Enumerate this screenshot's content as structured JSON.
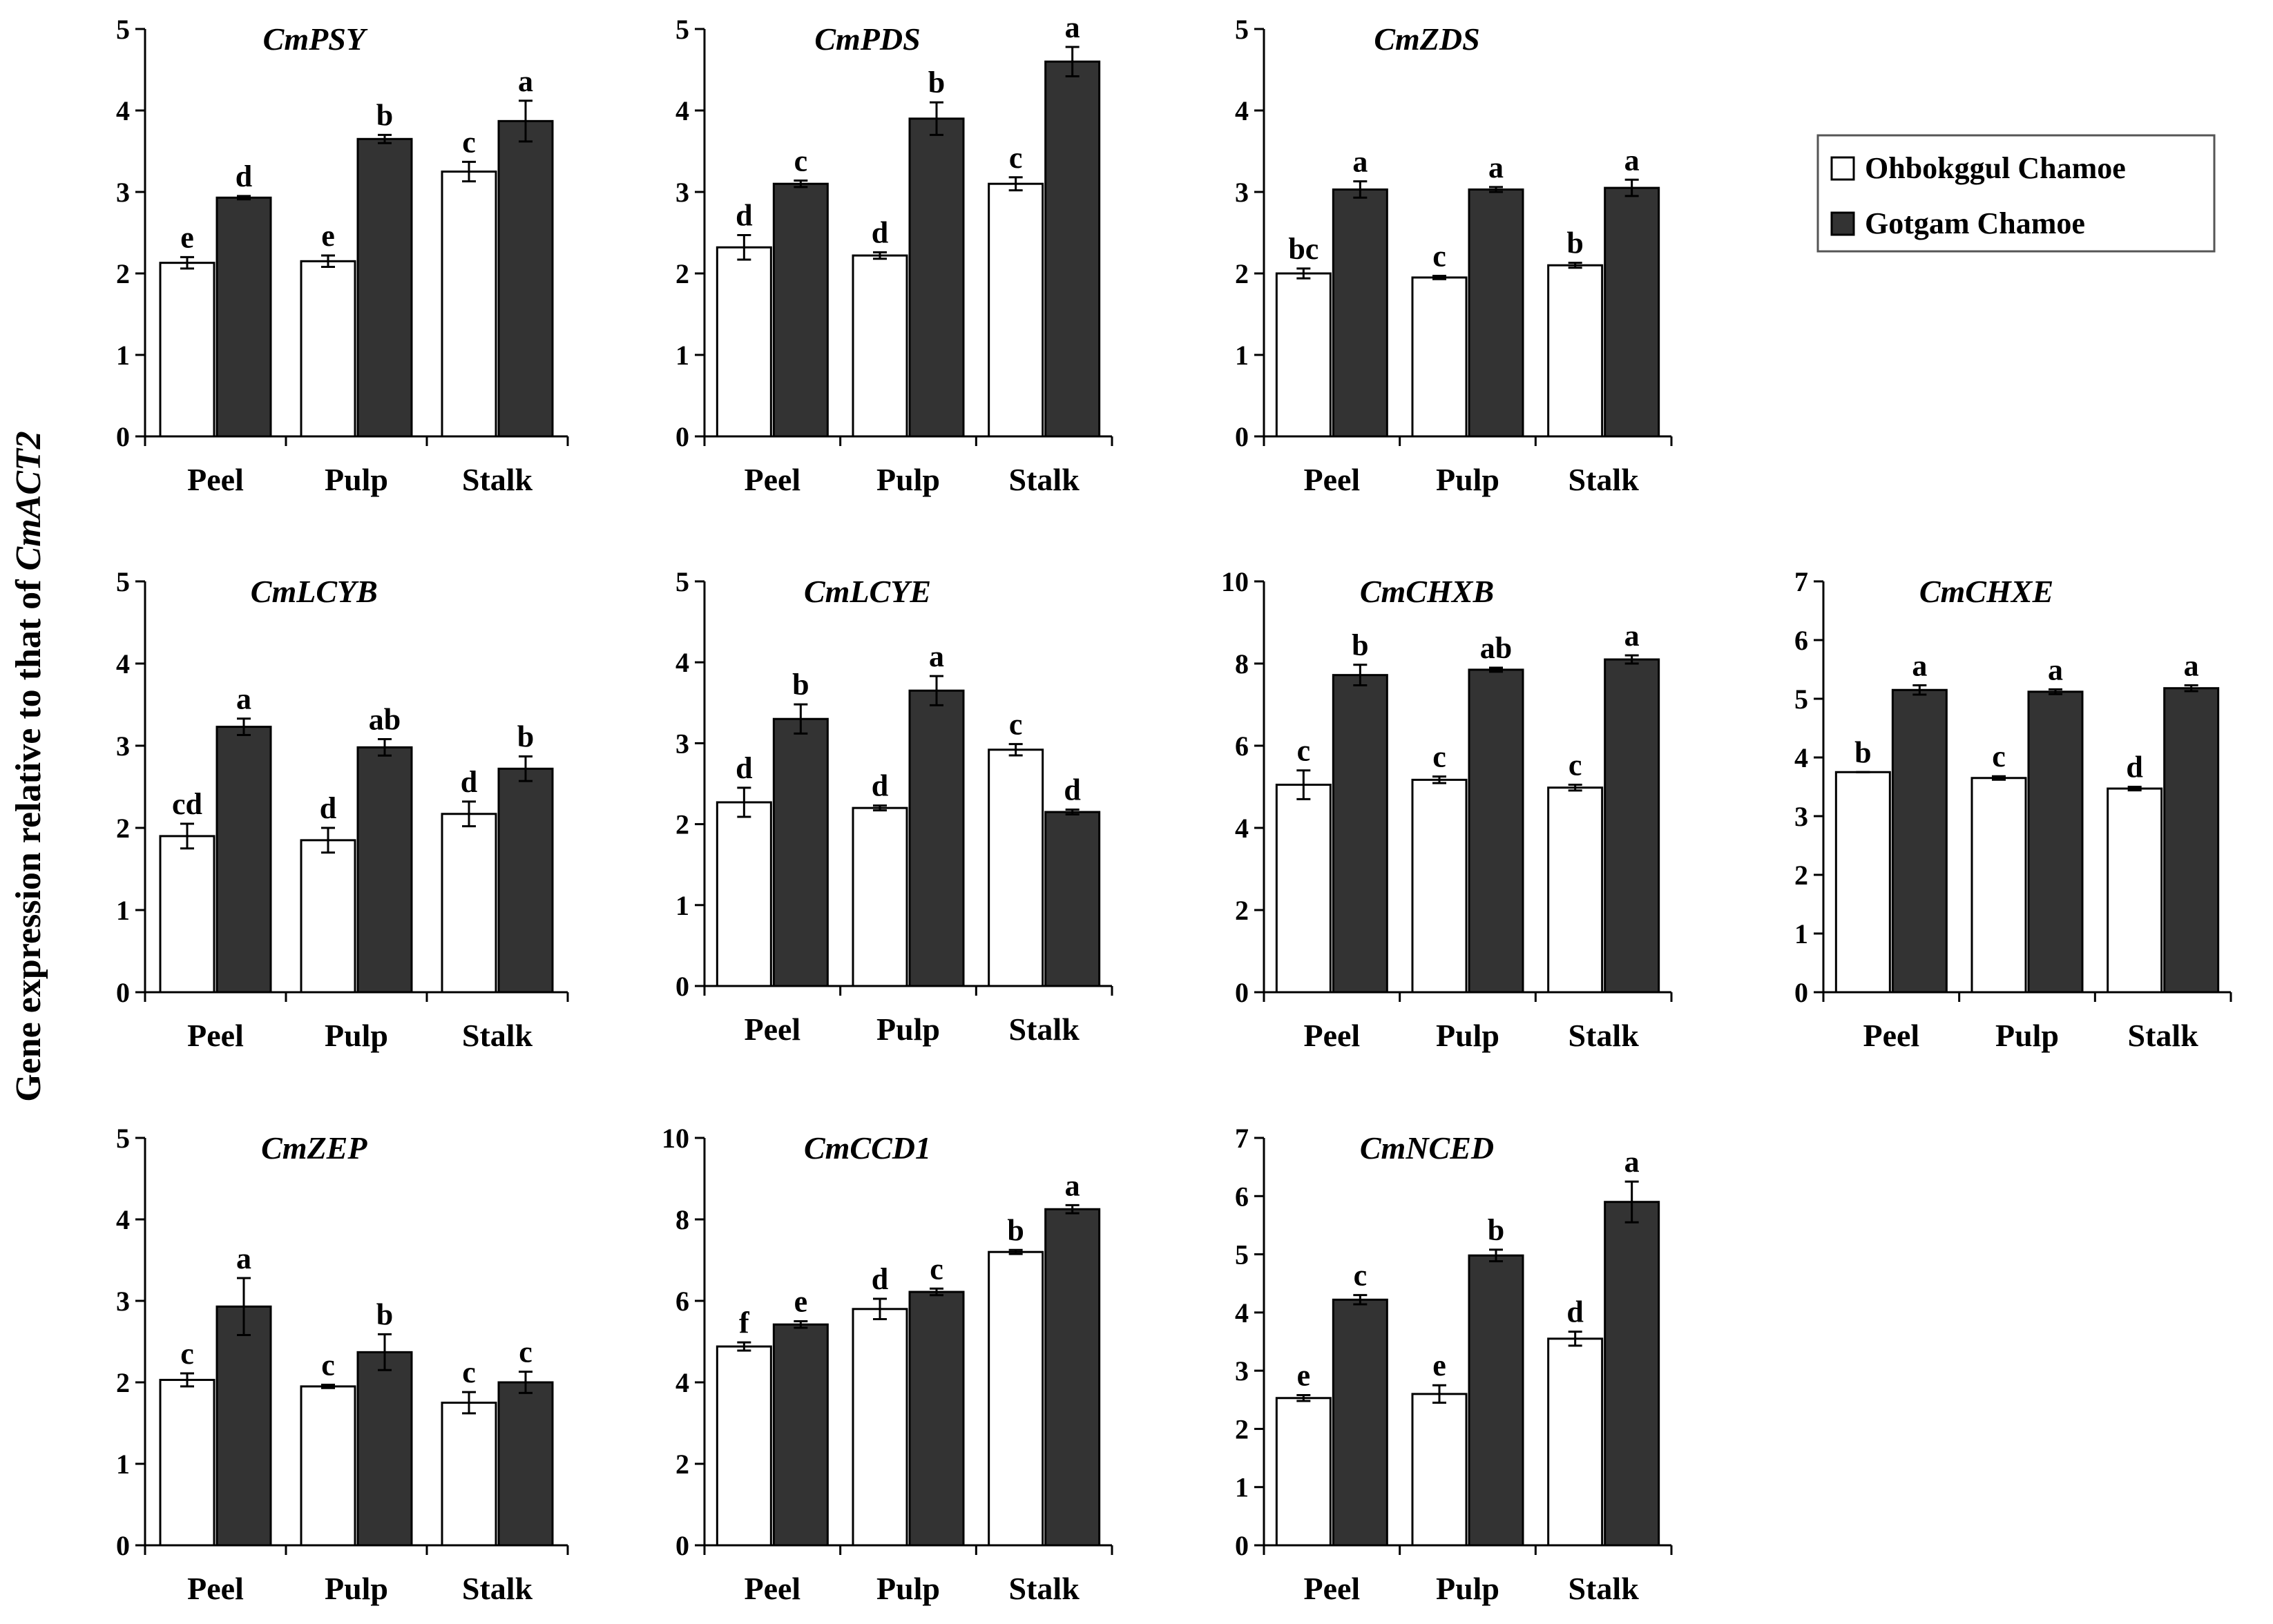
{
  "figure": {
    "ylabel_prefix": "Gene expression relative to that of ",
    "ylabel_gene": "CmACT2",
    "legend": [
      {
        "label": "Ohbokggul Chamoe",
        "color": "#ffffff"
      },
      {
        "label": "Gotgam Chamoe",
        "color": "#333333"
      }
    ]
  },
  "chart_data": [
    {
      "type": "bar",
      "title": "CmPSY",
      "categories": [
        "Peel",
        "Pulp",
        "Stalk"
      ],
      "ylim": [
        0,
        5
      ],
      "yticks": [
        0,
        1,
        2,
        3,
        4,
        5
      ],
      "series": [
        {
          "name": "Ohbokggul Chamoe",
          "values": [
            2.13,
            2.15,
            3.25
          ],
          "errors": [
            0.07,
            0.07,
            0.12
          ],
          "letters": [
            "e",
            "e",
            "c"
          ]
        },
        {
          "name": "Gotgam Chamoe",
          "values": [
            2.93,
            3.65,
            3.87
          ],
          "errors": [
            0.02,
            0.05,
            0.25
          ],
          "letters": [
            "d",
            "b",
            "a"
          ]
        }
      ]
    },
    {
      "type": "bar",
      "title": "CmPDS",
      "categories": [
        "Peel",
        "Pulp",
        "Stalk"
      ],
      "ylim": [
        0,
        5
      ],
      "yticks": [
        0,
        1,
        2,
        3,
        4,
        5
      ],
      "series": [
        {
          "name": "Ohbokggul Chamoe",
          "values": [
            2.32,
            2.22,
            3.1
          ],
          "errors": [
            0.15,
            0.04,
            0.08
          ],
          "letters": [
            "d",
            "d",
            "c"
          ]
        },
        {
          "name": "Gotgam Chamoe",
          "values": [
            3.1,
            3.9,
            4.6
          ],
          "errors": [
            0.04,
            0.2,
            0.18
          ],
          "letters": [
            "c",
            "b",
            "a"
          ]
        }
      ]
    },
    {
      "type": "bar",
      "title": "CmZDS",
      "categories": [
        "Peel",
        "Pulp",
        "Stalk"
      ],
      "ylim": [
        0,
        5
      ],
      "yticks": [
        0,
        1,
        2,
        3,
        4,
        5
      ],
      "series": [
        {
          "name": "Ohbokggul Chamoe",
          "values": [
            2.0,
            1.95,
            2.1
          ],
          "errors": [
            0.06,
            0.02,
            0.03
          ],
          "letters": [
            "bc",
            "c",
            "b"
          ]
        },
        {
          "name": "Gotgam Chamoe",
          "values": [
            3.03,
            3.03,
            3.05
          ],
          "errors": [
            0.1,
            0.03,
            0.1
          ],
          "letters": [
            "a",
            "a",
            "a"
          ]
        }
      ]
    },
    {
      "type": "bar",
      "title": "CmLCYB",
      "categories": [
        "Peel",
        "Pulp",
        "Stalk"
      ],
      "ylim": [
        0,
        5
      ],
      "yticks": [
        0,
        1,
        2,
        3,
        4,
        5
      ],
      "series": [
        {
          "name": "Ohbokggul Chamoe",
          "values": [
            1.9,
            1.85,
            2.17
          ],
          "errors": [
            0.15,
            0.15,
            0.15
          ],
          "letters": [
            "cd",
            "d",
            "d"
          ]
        },
        {
          "name": "Gotgam Chamoe",
          "values": [
            3.23,
            2.98,
            2.72
          ],
          "errors": [
            0.1,
            0.1,
            0.15
          ],
          "letters": [
            "a",
            "ab",
            "b"
          ]
        }
      ]
    },
    {
      "type": "bar",
      "title": "CmLCYE",
      "categories": [
        "Peel",
        "Pulp",
        "Stalk"
      ],
      "ylim": [
        0,
        5
      ],
      "yticks": [
        0,
        1,
        2,
        3,
        4,
        5
      ],
      "series": [
        {
          "name": "Ohbokggul Chamoe",
          "values": [
            2.27,
            2.2,
            2.92
          ],
          "errors": [
            0.18,
            0.03,
            0.07
          ],
          "letters": [
            "d",
            "d",
            "c"
          ]
        },
        {
          "name": "Gotgam Chamoe",
          "values": [
            3.3,
            3.65,
            2.15
          ],
          "errors": [
            0.18,
            0.18,
            0.03
          ],
          "letters": [
            "b",
            "a",
            "d"
          ]
        }
      ]
    },
    {
      "type": "bar",
      "title": "CmCHXB",
      "categories": [
        "Peel",
        "Pulp",
        "Stalk"
      ],
      "ylim": [
        0,
        10
      ],
      "yticks": [
        0,
        2,
        4,
        6,
        8,
        10
      ],
      "series": [
        {
          "name": "Ohbokggul Chamoe",
          "values": [
            5.05,
            5.17,
            4.98
          ],
          "errors": [
            0.35,
            0.08,
            0.07
          ],
          "letters": [
            "c",
            "c",
            "c"
          ]
        },
        {
          "name": "Gotgam Chamoe",
          "values": [
            7.72,
            7.85,
            8.1
          ],
          "errors": [
            0.25,
            0.05,
            0.1
          ],
          "letters": [
            "b",
            "ab",
            "a"
          ]
        }
      ]
    },
    {
      "type": "bar",
      "title": "CmCHXE",
      "categories": [
        "Peel",
        "Pulp",
        "Stalk"
      ],
      "ylim": [
        0,
        7
      ],
      "yticks": [
        0,
        1,
        2,
        3,
        4,
        5,
        6,
        7
      ],
      "series": [
        {
          "name": "Ohbokggul Chamoe",
          "values": [
            3.75,
            3.65,
            3.47
          ],
          "errors": [
            0.0,
            0.03,
            0.03
          ],
          "letters": [
            "b",
            "c",
            "d"
          ]
        },
        {
          "name": "Gotgam Chamoe",
          "values": [
            5.15,
            5.12,
            5.18
          ],
          "errors": [
            0.08,
            0.04,
            0.05
          ],
          "letters": [
            "a",
            "a",
            "a"
          ]
        }
      ]
    },
    {
      "type": "bar",
      "title": "CmZEP",
      "categories": [
        "Peel",
        "Pulp",
        "Stalk"
      ],
      "ylim": [
        0,
        5
      ],
      "yticks": [
        0,
        1,
        2,
        3,
        4,
        5
      ],
      "series": [
        {
          "name": "Ohbokggul Chamoe",
          "values": [
            2.03,
            1.95,
            1.75
          ],
          "errors": [
            0.08,
            0.02,
            0.13
          ],
          "letters": [
            "c",
            "c",
            "c"
          ]
        },
        {
          "name": "Gotgam Chamoe",
          "values": [
            2.93,
            2.37,
            2.0
          ],
          "errors": [
            0.35,
            0.22,
            0.13
          ],
          "letters": [
            "a",
            "b",
            "c"
          ]
        }
      ]
    },
    {
      "type": "bar",
      "title": "CmCCD1",
      "categories": [
        "Peel",
        "Pulp",
        "Stalk"
      ],
      "ylim": [
        0,
        10
      ],
      "yticks": [
        0,
        2,
        4,
        6,
        8,
        10
      ],
      "series": [
        {
          "name": "Ohbokggul Chamoe",
          "values": [
            4.88,
            5.8,
            7.2
          ],
          "errors": [
            0.1,
            0.25,
            0.05
          ],
          "letters": [
            "f",
            "d",
            "b"
          ]
        },
        {
          "name": "Gotgam Chamoe",
          "values": [
            5.42,
            6.22,
            8.25
          ],
          "errors": [
            0.08,
            0.08,
            0.1
          ],
          "letters": [
            "e",
            "c",
            "a"
          ]
        }
      ]
    },
    {
      "type": "bar",
      "title": "CmNCED",
      "categories": [
        "Peel",
        "Pulp",
        "Stalk"
      ],
      "ylim": [
        0,
        7
      ],
      "yticks": [
        0,
        1,
        2,
        3,
        4,
        5,
        6,
        7
      ],
      "series": [
        {
          "name": "Ohbokggul Chamoe",
          "values": [
            2.53,
            2.6,
            3.55
          ],
          "errors": [
            0.05,
            0.15,
            0.12
          ],
          "letters": [
            "e",
            "e",
            "d"
          ]
        },
        {
          "name": "Gotgam Chamoe",
          "values": [
            4.22,
            4.98,
            5.9
          ],
          "errors": [
            0.08,
            0.1,
            0.35
          ],
          "letters": [
            "c",
            "b",
            "a"
          ]
        }
      ]
    }
  ]
}
